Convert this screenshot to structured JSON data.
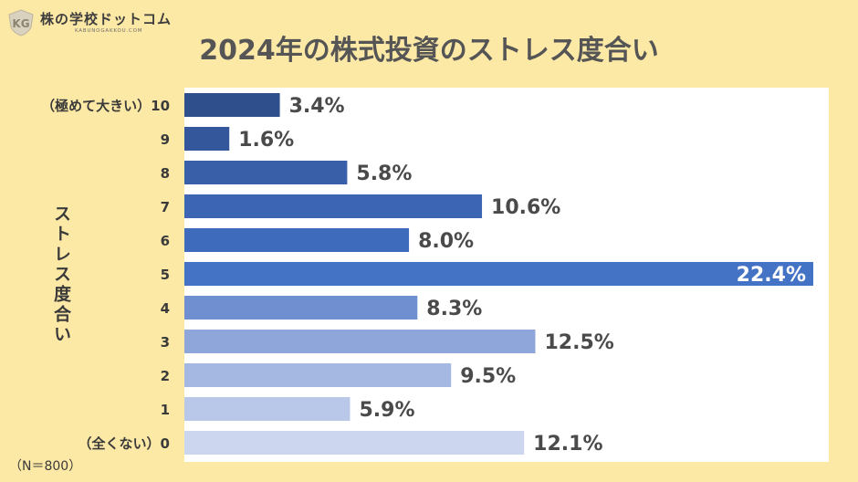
{
  "logo": {
    "name": "株の学校ドットコム",
    "sub": "KABUNOGAKKOU.COM"
  },
  "note": "（N＝800）",
  "colors": {
    "background": "#fde9a6",
    "plot_background": "#ffffff",
    "highlight_bar": "#4472c4"
  },
  "chart_data": {
    "type": "bar",
    "orientation": "horizontal",
    "title": "2024年の株式投資のストレス度合い",
    "ylabel": "ストレス度合い",
    "xlabel": "",
    "categories": [
      "（極めて大きい）10",
      "9",
      "8",
      "7",
      "6",
      "5",
      "4",
      "3",
      "2",
      "1",
      "（全くない）0"
    ],
    "values": [
      3.4,
      1.6,
      5.8,
      10.6,
      8.0,
      22.4,
      8.3,
      12.5,
      9.5,
      5.9,
      12.1
    ],
    "value_labels": [
      "3.4%",
      "1.6%",
      "5.8%",
      "10.6%",
      "8.0%",
      "22.4%",
      "8.3%",
      "12.5%",
      "9.5%",
      "5.9%",
      "12.1%"
    ],
    "bar_colors": [
      "#2f4f8c",
      "#33579a",
      "#385fa8",
      "#3c66b4",
      "#3f6bbd",
      "#4472c4",
      "#6f8fd0",
      "#8ea6da",
      "#a5b8e1",
      "#b9c8e8",
      "#ccd6ef"
    ],
    "xlim": [
      0,
      22.4
    ],
    "grid": false,
    "legend": "none"
  }
}
